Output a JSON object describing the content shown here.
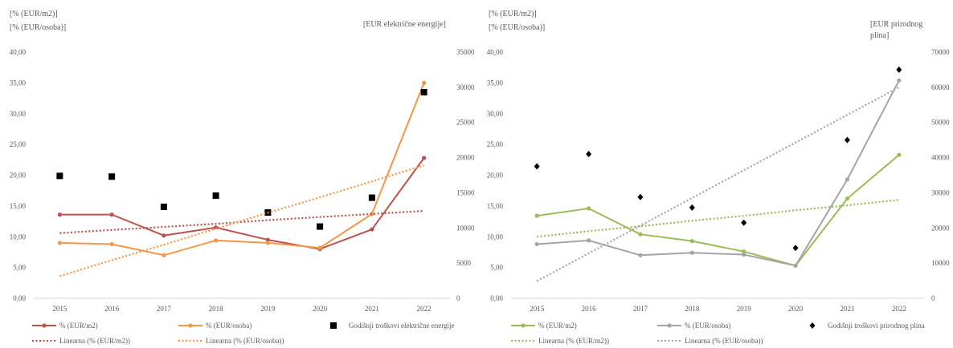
{
  "chart_data": [
    {
      "type": "line",
      "header_lines": [
        "[% (EUR/m2)]",
        "[% (EUR/osoba)]"
      ],
      "y2_header_lines": [
        "[EUR električne energije]"
      ],
      "categories": [
        "2015",
        "2016",
        "2017",
        "2018",
        "2019",
        "2020",
        "2021",
        "2022"
      ],
      "ylim": [
        0,
        40
      ],
      "yticks": [
        "0,00",
        "5,00",
        "10,00",
        "15,00",
        "20,00",
        "25,00",
        "30,00",
        "35,00",
        "40,00"
      ],
      "y2lim": [
        0,
        35000
      ],
      "y2ticks": [
        "0",
        "5000",
        "10000",
        "15000",
        "20000",
        "25000",
        "30000",
        "35000"
      ],
      "series": [
        {
          "name": "% (EUR/m2)",
          "kind": "line",
          "axis": "left",
          "color": "#C0504D",
          "values": [
            13.6,
            13.6,
            10.2,
            11.5,
            9.5,
            8.0,
            11.2,
            22.8
          ]
        },
        {
          "name": "% (EUR/osoba)",
          "kind": "line",
          "axis": "left",
          "color": "#F79646",
          "values": [
            9.0,
            8.8,
            7.0,
            9.4,
            9.0,
            8.2,
            13.7,
            35.0
          ]
        },
        {
          "name": "Godišnji troškovi električne energije",
          "kind": "marker",
          "marker": "square",
          "axis": "right",
          "color": "#000000",
          "values": [
            17400,
            17300,
            13000,
            14600,
            12200,
            10200,
            14300,
            29300
          ]
        },
        {
          "name": "Linearna (% (EUR/m2))",
          "kind": "trend",
          "color": "#C0504D",
          "values": [
            10.6,
            11.1,
            11.6,
            12.1,
            12.7,
            13.2,
            13.7,
            14.2
          ]
        },
        {
          "name": "Linearna (% (EUR/osoba))",
          "kind": "trend",
          "color": "#F79646",
          "values": [
            3.6,
            6.2,
            8.7,
            11.3,
            13.9,
            16.4,
            19.0,
            21.6
          ]
        }
      ]
    },
    {
      "type": "line",
      "header_lines": [
        "[% (EUR/m2)]",
        "[% (EUR/osoba)]"
      ],
      "y2_header_lines": [
        "[EUR prirodnog",
        "plina]"
      ],
      "categories": [
        "2015",
        "2016",
        "2017",
        "2018",
        "2019",
        "2020",
        "2021",
        "2022"
      ],
      "ylim": [
        0,
        40
      ],
      "yticks": [
        "0,00",
        "5,00",
        "10,00",
        "15,00",
        "20,00",
        "25,00",
        "30,00",
        "35,00",
        "40,00"
      ],
      "y2lim": [
        0,
        70000
      ],
      "y2ticks": [
        "0",
        "10000",
        "20000",
        "30000",
        "40000",
        "50000",
        "60000",
        "70000"
      ],
      "series": [
        {
          "name": "% (EUR/m2)",
          "kind": "line",
          "axis": "left",
          "color": "#9BBB59",
          "values": [
            13.4,
            14.6,
            10.4,
            9.3,
            7.6,
            5.3,
            16.2,
            23.3
          ]
        },
        {
          "name": "% (EUR/osoba)",
          "kind": "line",
          "axis": "left",
          "color": "#A5A5A5",
          "values": [
            8.8,
            9.4,
            7.0,
            7.4,
            7.1,
            5.3,
            19.3,
            35.4
          ]
        },
        {
          "name": "Godišnji troškovi prirodnog plina",
          "kind": "marker",
          "marker": "diamond",
          "axis": "right",
          "color": "#000000",
          "values": [
            37500,
            41000,
            28800,
            25800,
            21500,
            14300,
            45000,
            65000
          ]
        },
        {
          "name": "Linearna (% (EUR/m2))",
          "kind": "trend",
          "color": "#9BBB59",
          "values": [
            10.0,
            10.9,
            11.7,
            12.6,
            13.4,
            14.3,
            15.1,
            16.0
          ]
        },
        {
          "name": "Linearna (% (EUR/osoba))",
          "kind": "trend",
          "color": "#A5A5A5",
          "values": [
            2.8,
            7.3,
            11.8,
            16.3,
            20.8,
            25.3,
            29.8,
            34.3
          ]
        }
      ]
    }
  ]
}
